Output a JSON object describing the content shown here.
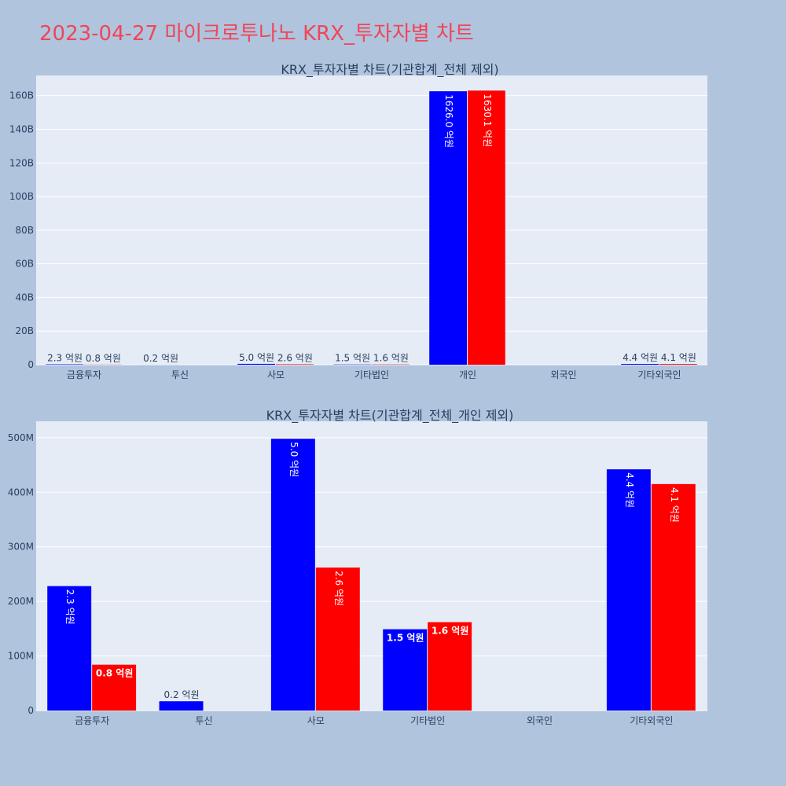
{
  "page_title": "2023-04-27 마이크로투나노 KRX_투자자별 차트",
  "colors": {
    "buy": "#0000ff",
    "sell": "#ff0000",
    "title": "#ef4658",
    "background": "#b0c4de",
    "plot_background": "#e5ecf6"
  },
  "chart_data": [
    {
      "type": "bar",
      "title": "KRX_투자자별 차트(기관합계_전체 제외)",
      "categories": [
        "금융투자",
        "투신",
        "사모",
        "기타법인",
        "개인",
        "외국인",
        "기타외국인"
      ],
      "ylim": [
        0,
        172000000000
      ],
      "yticks": [
        0,
        20000000000,
        40000000000,
        60000000000,
        80000000000,
        100000000000,
        120000000000,
        140000000000,
        160000000000
      ],
      "ytick_labels": [
        "0",
        "20B",
        "40B",
        "60B",
        "80B",
        "100B",
        "120B",
        "140B",
        "160B"
      ],
      "grid": true,
      "series": [
        {
          "color": "#0000ff",
          "values": [
            230000000,
            17000000,
            500000000,
            150000000,
            162600000000,
            0,
            440000000
          ],
          "labels": [
            "2.3 억원",
            "0.2 억원",
            "5.0 억원",
            "1.5 억원",
            "1626.0 억원",
            "",
            "4.4 억원"
          ]
        },
        {
          "color": "#ff0000",
          "values": [
            80000000,
            0,
            260000000,
            160000000,
            163010000000,
            0,
            410000000
          ],
          "labels": [
            "0.8 억원",
            "",
            "2.6 억원",
            "1.6 억원",
            "1630.1 억원",
            "",
            "4.1 억원"
          ]
        }
      ]
    },
    {
      "type": "bar",
      "title": "KRX_투자자별 차트(기관합계_전체_개인 제외)",
      "categories": [
        "금융투자",
        "투신",
        "사모",
        "기타법인",
        "외국인",
        "기타외국인"
      ],
      "ylim": [
        0,
        530000000
      ],
      "yticks": [
        0,
        100000000,
        200000000,
        300000000,
        400000000,
        500000000
      ],
      "ytick_labels": [
        "0",
        "100M",
        "200M",
        "300M",
        "400M",
        "500M"
      ],
      "grid": true,
      "series": [
        {
          "color": "#0000ff",
          "values": [
            228000000,
            17000000,
            498000000,
            149000000,
            0,
            442000000
          ],
          "labels": [
            "2.3 억원",
            "0.2 억원",
            "5.0 억원",
            "1.5 억원",
            "",
            "4.4 억원"
          ]
        },
        {
          "color": "#ff0000",
          "values": [
            84000000,
            0,
            262000000,
            162000000,
            0,
            415000000
          ],
          "labels": [
            "0.8 억원",
            "",
            "2.6 억원",
            "1.6 억원",
            "",
            "4.1 억원"
          ]
        }
      ]
    }
  ]
}
